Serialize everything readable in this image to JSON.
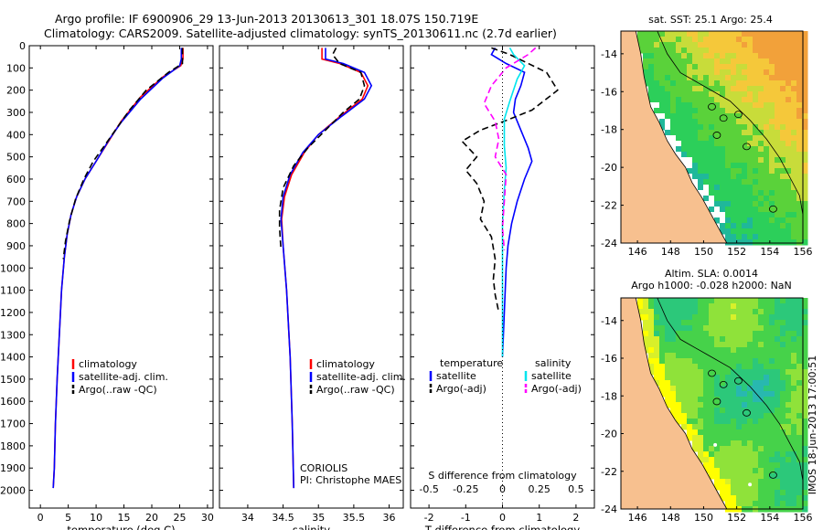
{
  "header": {
    "line1": "Argo profile: IF 6900906_29 13-Jun-2013 20130613_301 18.07S 150.719E",
    "line2": "Climatology: CARS2009. Satellite-adjusted climatology: synTS_20130611.nc (2.7d earlier)"
  },
  "colors": {
    "climatology": "#ff0000",
    "satellite": "#0000ff",
    "argo": "#000000",
    "sal_satellite": "#00e5ee",
    "sal_argo": "#ff00ff",
    "land": "#f7c08f",
    "contour": "#000000"
  },
  "chart_data": [
    {
      "type": "line",
      "id": "temperature",
      "xlabel": "temperature (deg C)",
      "xlim": [
        -2,
        31
      ],
      "xticks": [
        0,
        5,
        10,
        15,
        20,
        25,
        30
      ],
      "ylim": [
        0,
        2080
      ],
      "yticks": [
        0,
        100,
        200,
        300,
        400,
        500,
        600,
        700,
        800,
        900,
        1000,
        1100,
        1200,
        1300,
        1400,
        1500,
        1600,
        1700,
        1800,
        1900,
        2000
      ],
      "legend": [
        "climatology",
        "satellite-adj. clim.",
        "Argo(..raw -QC)"
      ],
      "series": [
        {
          "name": "climatology",
          "style": "solid",
          "color": "#ff0000",
          "points": [
            [
              25.6,
              10
            ],
            [
              25.6,
              60
            ],
            [
              25.2,
              90
            ],
            [
              22,
              140
            ],
            [
              18,
              230
            ],
            [
              14.5,
              340
            ],
            [
              12.5,
              420
            ],
            [
              10,
              520
            ],
            [
              8,
              600
            ],
            [
              6.5,
              680
            ],
            [
              5.5,
              760
            ],
            [
              4.8,
              850
            ],
            [
              4.3,
              950
            ],
            [
              3.8,
              1100
            ],
            [
              3.4,
              1300
            ],
            [
              3.0,
              1500
            ],
            [
              2.7,
              1700
            ],
            [
              2.5,
              1900
            ],
            [
              2.3,
              1990
            ]
          ]
        },
        {
          "name": "satellite-adj. clim.",
          "style": "solid",
          "color": "#0000ff",
          "points": [
            [
              25.3,
              10
            ],
            [
              25.3,
              60
            ],
            [
              25.0,
              90
            ],
            [
              22,
              145
            ],
            [
              18,
              240
            ],
            [
              14.5,
              345
            ],
            [
              12.4,
              420
            ],
            [
              10,
              520
            ],
            [
              8,
              600
            ],
            [
              6.5,
              680
            ],
            [
              5.5,
              760
            ],
            [
              4.8,
              850
            ],
            [
              4.3,
              950
            ],
            [
              3.8,
              1100
            ],
            [
              3.4,
              1300
            ],
            [
              3.0,
              1500
            ],
            [
              2.7,
              1700
            ],
            [
              2.5,
              1900
            ],
            [
              2.3,
              1990
            ]
          ]
        },
        {
          "name": "Argo(..raw -QC)",
          "style": "dashed",
          "color": "#000000",
          "points": [
            [
              25.5,
              10
            ],
            [
              25.5,
              80
            ],
            [
              23,
              120
            ],
            [
              19,
              200
            ],
            [
              16,
              290
            ],
            [
              14,
              360
            ],
            [
              11.5,
              450
            ],
            [
              9.5,
              520
            ],
            [
              7.8,
              600
            ],
            [
              6.3,
              690
            ],
            [
              5.2,
              790
            ],
            [
              4.5,
              880
            ],
            [
              4.1,
              960
            ]
          ]
        }
      ]
    },
    {
      "type": "line",
      "id": "salinity",
      "xlabel": "salinity",
      "xlim": [
        33.6,
        36.2
      ],
      "xticks": [
        34,
        34.5,
        35,
        35.5,
        36
      ],
      "ylim": [
        0,
        2080
      ],
      "legend": [
        "climatology",
        "satellite-adj. clim.",
        "Argo(..raw -QC)"
      ],
      "annotations": [
        "CORIOLIS",
        "PI: Christophe MAES"
      ],
      "series": [
        {
          "name": "climatology",
          "style": "solid",
          "color": "#ff0000",
          "points": [
            [
              35.05,
              10
            ],
            [
              35.05,
              60
            ],
            [
              35.3,
              80
            ],
            [
              35.6,
              120
            ],
            [
              35.7,
              180
            ],
            [
              35.62,
              240
            ],
            [
              35.3,
              320
            ],
            [
              35.0,
              400
            ],
            [
              34.8,
              480
            ],
            [
              34.62,
              580
            ],
            [
              34.52,
              680
            ],
            [
              34.48,
              780
            ],
            [
              34.5,
              900
            ],
            [
              34.55,
              1100
            ],
            [
              34.6,
              1400
            ],
            [
              34.63,
              1700
            ],
            [
              34.65,
              1990
            ]
          ]
        },
        {
          "name": "satellite-adj. clim.",
          "style": "solid",
          "color": "#0000ff",
          "points": [
            [
              35.1,
              10
            ],
            [
              35.1,
              60
            ],
            [
              35.35,
              80
            ],
            [
              35.65,
              120
            ],
            [
              35.75,
              180
            ],
            [
              35.65,
              240
            ],
            [
              35.32,
              320
            ],
            [
              35.0,
              400
            ],
            [
              34.78,
              480
            ],
            [
              34.6,
              580
            ],
            [
              34.5,
              680
            ],
            [
              34.47,
              780
            ],
            [
              34.5,
              900
            ],
            [
              34.55,
              1100
            ],
            [
              34.6,
              1400
            ],
            [
              34.63,
              1700
            ],
            [
              34.65,
              1990
            ]
          ]
        },
        {
          "name": "Argo(..raw -QC)",
          "style": "dashed",
          "color": "#000000",
          "points": [
            [
              35.25,
              10
            ],
            [
              35.2,
              40
            ],
            [
              35.3,
              80
            ],
            [
              35.6,
              120
            ],
            [
              35.65,
              180
            ],
            [
              35.58,
              240
            ],
            [
              35.35,
              300
            ],
            [
              35.1,
              380
            ],
            [
              34.85,
              460
            ],
            [
              34.65,
              540
            ],
            [
              34.5,
              640
            ],
            [
              34.45,
              740
            ],
            [
              34.45,
              820
            ],
            [
              34.47,
              920
            ]
          ]
        }
      ]
    },
    {
      "type": "line",
      "id": "difference",
      "xlabel": "T difference from climatology",
      "xlabel2": "S difference from climatology",
      "xlim": [
        -2.5,
        2.5
      ],
      "xticks": [
        -2,
        -1,
        0,
        1,
        2
      ],
      "xticks2": [
        "-0.5",
        "-0.25",
        "0",
        "0.25",
        "0.5"
      ],
      "ylim": [
        0,
        2080
      ],
      "legend_titles": [
        "temperature",
        "salinity"
      ],
      "legend": [
        "satellite",
        "Argo(-adj)",
        "satellite",
        "Argo(-adj)"
      ],
      "series": [
        {
          "name": "temperature satellite",
          "style": "solid",
          "color": "#0000ff",
          "points": [
            [
              -0.2,
              10
            ],
            [
              -0.3,
              40
            ],
            [
              0.1,
              80
            ],
            [
              0.6,
              120
            ],
            [
              0.5,
              180
            ],
            [
              0.35,
              240
            ],
            [
              0.3,
              300
            ],
            [
              0.5,
              380
            ],
            [
              0.7,
              460
            ],
            [
              0.8,
              520
            ],
            [
              0.6,
              600
            ],
            [
              0.4,
              700
            ],
            [
              0.25,
              800
            ],
            [
              0.15,
              900
            ],
            [
              0.1,
              1000
            ],
            [
              0.05,
              1200
            ],
            [
              0,
              1400
            ]
          ]
        },
        {
          "name": "temperature Argo(-adj)",
          "style": "dashed",
          "color": "#000000",
          "points": [
            [
              -0.3,
              10
            ],
            [
              0.2,
              40
            ],
            [
              1.2,
              120
            ],
            [
              1.5,
              200
            ],
            [
              0.8,
              290
            ],
            [
              0.2,
              330
            ],
            [
              -0.6,
              380
            ],
            [
              -1.1,
              430
            ],
            [
              -0.7,
              500
            ],
            [
              -1.0,
              560
            ],
            [
              -0.7,
              620
            ],
            [
              -0.5,
              700
            ],
            [
              -0.6,
              780
            ],
            [
              -0.3,
              860
            ],
            [
              -0.2,
              960
            ],
            [
              -0.25,
              1050
            ],
            [
              -0.2,
              1120
            ],
            [
              -0.1,
              1200
            ]
          ]
        },
        {
          "name": "salinity satellite",
          "style": "solid",
          "color": "#00e5ee",
          "points": [
            [
              0.2,
              10
            ],
            [
              0.3,
              40
            ],
            [
              0.6,
              90
            ],
            [
              0.4,
              150
            ],
            [
              0.2,
              250
            ],
            [
              0.05,
              330
            ],
            [
              0.05,
              450
            ],
            [
              0.1,
              550
            ],
            [
              0.05,
              650
            ],
            [
              0,
              800
            ],
            [
              0,
              1000
            ],
            [
              0,
              1200
            ],
            [
              0,
              1400
            ]
          ]
        },
        {
          "name": "salinity Argo(-adj)",
          "style": "dashed",
          "color": "#ff00ff",
          "points": [
            [
              0.9,
              10
            ],
            [
              0.7,
              40
            ],
            [
              0.1,
              100
            ],
            [
              -0.3,
              180
            ],
            [
              -0.5,
              260
            ],
            [
              -0.2,
              340
            ],
            [
              -0.1,
              420
            ],
            [
              -0.2,
              500
            ],
            [
              0.1,
              580
            ],
            [
              0.05,
              700
            ],
            [
              0,
              820
            ],
            [
              0.05,
              920
            ]
          ]
        }
      ]
    },
    {
      "type": "heatmap",
      "id": "sst_map",
      "title": "sat. SST: 25.1  Argo: 25.4",
      "xlim": [
        145,
        156
      ],
      "ylim": [
        -24,
        -12.8
      ],
      "xticks": [
        146,
        148,
        150,
        152,
        154,
        156
      ],
      "yticks": [
        -14,
        -16,
        -18,
        -20,
        -22,
        -24
      ]
    },
    {
      "type": "heatmap",
      "id": "sla_map",
      "title": "Altim. SLA: 0.0014",
      "subtitle": "Argo h1000: -0.028 h2000: NaN",
      "xlim": [
        145,
        156
      ],
      "ylim": [
        -24,
        -12.8
      ],
      "xticks": [
        146,
        148,
        150,
        152,
        154,
        156
      ],
      "yticks": [
        -14,
        -16,
        -18,
        -20,
        -22,
        -24
      ],
      "side_label": "IMOS 18-Jun-2013 17:00:51"
    }
  ]
}
